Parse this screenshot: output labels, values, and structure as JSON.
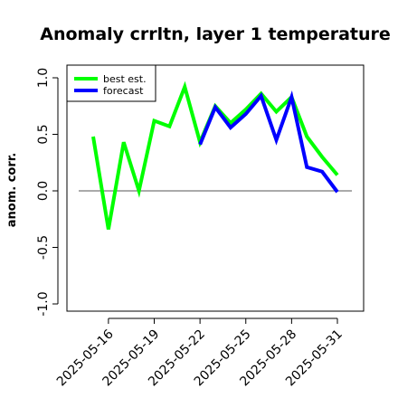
{
  "chart_data": {
    "type": "line",
    "title": "Anomaly crrltn, layer 1 temperature",
    "xlabel": "",
    "ylabel": "anom. corr.",
    "ylim": [
      -1.0,
      1.0
    ],
    "y_ticks": [
      "-1.0",
      "-0.5",
      "0.0",
      "0.5",
      "1.0"
    ],
    "x": [
      "2025-05-15",
      "2025-05-16",
      "2025-05-17",
      "2025-05-18",
      "2025-05-19",
      "2025-05-20",
      "2025-05-21",
      "2025-05-22",
      "2025-05-23",
      "2025-05-24",
      "2025-05-25",
      "2025-05-26",
      "2025-05-27",
      "2025-05-28",
      "2025-05-29",
      "2025-05-30",
      "2025-05-31"
    ],
    "x_tick_labels": [
      "2025-05-16",
      "2025-05-19",
      "2025-05-22",
      "2025-05-25",
      "2025-05-28",
      "2025-05-31"
    ],
    "highlight_tick": "2025-05-22",
    "highlight_color": "#228b22",
    "reference_line": 0,
    "grid": false,
    "legend_position": "top-left",
    "series": [
      {
        "name": "best est.",
        "color": "#00ff00",
        "values": [
          0.48,
          -0.34,
          0.43,
          0.0,
          0.62,
          0.57,
          0.92,
          0.43,
          0.75,
          0.6,
          0.72,
          0.86,
          0.7,
          0.83,
          0.48,
          0.3,
          0.14
        ]
      },
      {
        "name": "forecast",
        "color": "#0000ff",
        "values": [
          null,
          null,
          null,
          null,
          null,
          null,
          null,
          0.41,
          0.74,
          0.56,
          0.68,
          0.84,
          0.45,
          0.83,
          0.21,
          0.17,
          -0.01
        ]
      }
    ]
  }
}
